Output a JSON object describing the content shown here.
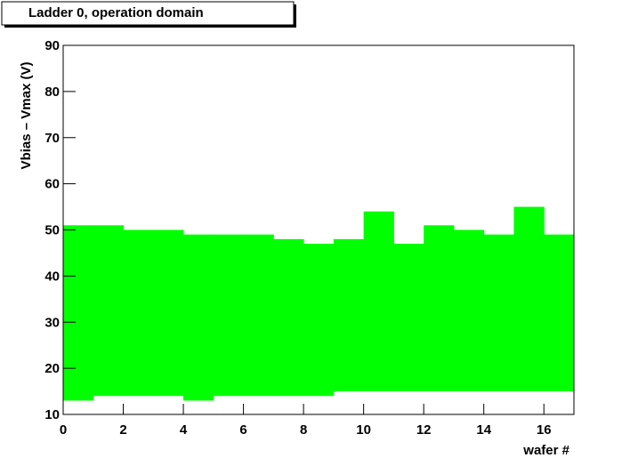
{
  "chart_data": {
    "type": "rangebar",
    "title": "Ladder  0, operation domain",
    "x_label": "wafer #",
    "y_label": "Vbias – Vmax (V)",
    "bins": [
      0,
      1,
      2,
      3,
      4,
      5,
      6,
      7,
      8,
      9,
      10,
      11,
      12,
      13,
      14,
      15,
      16,
      17
    ],
    "high": [
      51,
      51,
      50,
      50,
      49,
      49,
      49,
      48,
      47,
      48,
      54,
      47,
      51,
      50,
      49,
      55,
      49
    ],
    "low": [
      13,
      14,
      14,
      14,
      13,
      14,
      14,
      14,
      14,
      15,
      15,
      15,
      15,
      15,
      15,
      15,
      15
    ],
    "color": "#00ff00",
    "xlim": [
      0,
      17
    ],
    "xticks": [
      0,
      2,
      4,
      6,
      8,
      10,
      12,
      14,
      16
    ],
    "ylim": [
      10,
      90
    ],
    "yticks": [
      10,
      20,
      30,
      40,
      50,
      60,
      70,
      80,
      90
    ]
  }
}
